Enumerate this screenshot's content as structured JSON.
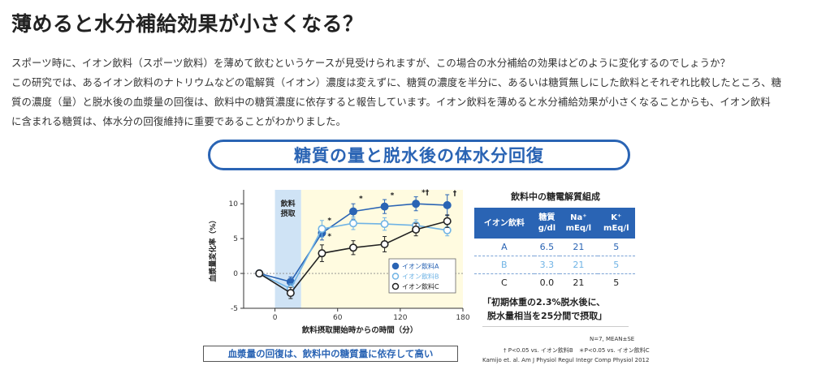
{
  "page": {
    "title": "薄めると水分補給効果が小さくなる？",
    "intro_lines": [
      "スポーツ時に、イオン飲料（スポーツ飲料）を薄めて飲むというケースが見受けられますが、この場合の水分補給の効果はどのように変化するのでしょうか？",
      "この研究では、あるイオン飲料のナトリウムなどの電解質（イオン）濃度は変えずに、糖質の濃度を半分に、あるいは糖質無しにした飲料とそれぞれ比較したところ、糖",
      "質の濃度（量）と脱水後の血漿量の回復は、飲料中の糖質濃度に依存すると報告しています。イオン飲料を薄めると水分補給効果が小さくなることからも、イオン飲料",
      "に含まれる糖質は、体水分の回復維持に重要であることがわかりました。"
    ]
  },
  "figure": {
    "banner": "糖質の量と脱水後の体水分回復",
    "conclusion": "血漿量の回復は、飲料中の糖質量に依存して高い",
    "table_title": "飲料中の糖電解質組成",
    "table_headers": {
      "drink": "イオン飲料",
      "sugar_l1": "糖質",
      "sugar_l2": "g/dl",
      "na_l1": "Na⁺",
      "na_l2": "mEq/l",
      "k_l1": "K⁺",
      "k_l2": "mEq/l"
    },
    "table_rows": [
      {
        "drink": "A",
        "sugar": "6.5",
        "na": "21",
        "k": "5"
      },
      {
        "drink": "B",
        "sugar": "3.3",
        "na": "21",
        "k": "5"
      },
      {
        "drink": "C",
        "sugar": "0.0",
        "na": "21",
        "k": "5"
      }
    ],
    "conditions_line1": "「初期体重の2.3%脱水後に、",
    "conditions_line2": "脱水量相当を25分間で摂取」",
    "note_n": "N=7, MEAN±SE",
    "note_sig": "† P<0.05 vs. イオン飲料B　＊P<0.05 vs. イオン飲料C",
    "note_ref": "Kamijo et. al. Am J Physiol Regul Integr Comp Physiol 2012"
  },
  "chart_data": {
    "type": "line",
    "xlabel": "飲料摂取開始時からの時間（分）",
    "ylabel": "血漿量変化率（%）",
    "xlim": [
      -30,
      180
    ],
    "ylim": [
      -5,
      12
    ],
    "xticks": [
      0,
      60,
      120,
      180
    ],
    "yticks": [
      -5,
      0,
      5,
      10
    ],
    "intake_label_l1": "飲料",
    "intake_label_l2": "摂取",
    "intake_window": [
      0,
      25
    ],
    "colors": {
      "A": "#2a64b4",
      "B": "#6fb3e5",
      "C": "#222222",
      "intake": "#cfe3f5",
      "bg": "#fffbe0"
    },
    "series": [
      {
        "name": "イオン飲料A",
        "style": "filled",
        "x": [
          -15,
          15,
          45,
          75,
          105,
          135,
          165
        ],
        "y": [
          0,
          -1.2,
          5.8,
          8.9,
          9.6,
          10.0,
          9.8
        ],
        "err": [
          0.3,
          0.7,
          1.0,
          1.1,
          1.0,
          1.0,
          1.5
        ]
      },
      {
        "name": "イオン飲料B",
        "style": "open-blue",
        "x": [
          -15,
          15,
          45,
          75,
          105,
          135,
          165
        ],
        "y": [
          0,
          -2.2,
          6.4,
          7.2,
          7.1,
          6.9,
          6.2
        ],
        "err": [
          0.3,
          0.7,
          1.2,
          0.9,
          0.9,
          0.8,
          0.8
        ]
      },
      {
        "name": "イオン飲料C",
        "style": "open-black",
        "x": [
          -15,
          15,
          45,
          75,
          105,
          135,
          165
        ],
        "y": [
          0,
          -2.8,
          2.9,
          3.7,
          4.2,
          6.3,
          7.5
        ],
        "err": [
          0.3,
          0.8,
          1.2,
          1.0,
          1.1,
          0.9,
          0.9
        ]
      }
    ],
    "annotations": [
      {
        "x": 45,
        "y": 7.3,
        "text": "*"
      },
      {
        "x": 45,
        "y": 5.0,
        "text": "*"
      },
      {
        "x": 75,
        "y": 10.4,
        "text": "*"
      },
      {
        "x": 105,
        "y": 10.9,
        "text": "*"
      },
      {
        "x": 135,
        "y": 11.3,
        "text": "*†"
      },
      {
        "x": 165,
        "y": 11.2,
        "text": "†"
      }
    ]
  }
}
